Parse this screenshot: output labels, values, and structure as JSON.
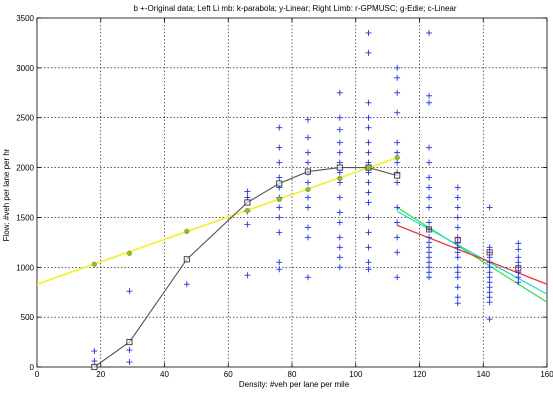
{
  "chart_data": {
    "type": "scatter",
    "title": "b +-Original data; Left  Li mb: k-parabola; y-Linear; Right Limb: r-GPMUSC; g-Edie;   c-Linear",
    "xlabel": "Density: #veh per lane per mile",
    "ylabel": "Flow: #veh per lane per hr",
    "xlim": [
      0,
      160
    ],
    "ylim": [
      0,
      3500
    ],
    "xticks": [
      0,
      20,
      40,
      60,
      80,
      100,
      120,
      140,
      160
    ],
    "yticks": [
      0,
      500,
      1000,
      1500,
      2000,
      2500,
      3000,
      3500
    ],
    "xtick_labels": [
      "0",
      "20",
      "40",
      "60",
      "80",
      "100",
      "120",
      "140",
      "160"
    ],
    "ytick_labels": [
      "0",
      "500",
      "1000",
      "1500",
      "2000",
      "2500",
      "3000",
      "3500"
    ],
    "grid": true,
    "colors": {
      "original": "#1f35e6",
      "parabola": "#555555",
      "linear_left": "#f5f03a",
      "gpmusc": "#e83a3a",
      "edie": "#3ee04a",
      "linear_right": "#2fd8d8"
    },
    "series": [
      {
        "key": "original",
        "style": "plus",
        "points": [
          [
            18,
            160
          ],
          [
            18,
            60
          ],
          [
            29,
            760
          ],
          [
            29,
            170
          ],
          [
            29,
            50
          ],
          [
            47,
            830
          ],
          [
            66,
            1760
          ],
          [
            66,
            1700
          ],
          [
            66,
            1560
          ],
          [
            66,
            1430
          ],
          [
            66,
            920
          ],
          [
            76,
            2400
          ],
          [
            76,
            2200
          ],
          [
            76,
            2050
          ],
          [
            76,
            1900
          ],
          [
            76,
            1800
          ],
          [
            76,
            1700
          ],
          [
            76,
            1600
          ],
          [
            76,
            1500
          ],
          [
            76,
            1350
          ],
          [
            76,
            1050
          ],
          [
            76,
            980
          ],
          [
            85,
            2480
          ],
          [
            85,
            2300
          ],
          [
            85,
            2150
          ],
          [
            85,
            2050
          ],
          [
            85,
            1950
          ],
          [
            85,
            1850
          ],
          [
            85,
            1700
          ],
          [
            85,
            1600
          ],
          [
            85,
            1400
          ],
          [
            85,
            1300
          ],
          [
            85,
            900
          ],
          [
            95,
            2750
          ],
          [
            95,
            2500
          ],
          [
            95,
            2380
          ],
          [
            95,
            2250
          ],
          [
            95,
            2150
          ],
          [
            95,
            2050
          ],
          [
            95,
            1950
          ],
          [
            95,
            1850
          ],
          [
            95,
            1700
          ],
          [
            95,
            1550
          ],
          [
            95,
            1450
          ],
          [
            95,
            1300
          ],
          [
            95,
            1200
          ],
          [
            95,
            1100
          ],
          [
            95,
            1000
          ],
          [
            104,
            3350
          ],
          [
            104,
            3150
          ],
          [
            104,
            2650
          ],
          [
            104,
            2500
          ],
          [
            104,
            2400
          ],
          [
            104,
            2250
          ],
          [
            104,
            2150
          ],
          [
            104,
            2050
          ],
          [
            104,
            1950
          ],
          [
            104,
            1850
          ],
          [
            104,
            1750
          ],
          [
            104,
            1650
          ],
          [
            104,
            1500
          ],
          [
            104,
            1350
          ],
          [
            104,
            1200
          ],
          [
            104,
            1050
          ],
          [
            104,
            980
          ],
          [
            113,
            3000
          ],
          [
            113,
            2900
          ],
          [
            113,
            2750
          ],
          [
            113,
            2550
          ],
          [
            113,
            2250
          ],
          [
            113,
            2150
          ],
          [
            113,
            2050
          ],
          [
            113,
            1950
          ],
          [
            113,
            1850
          ],
          [
            113,
            1600
          ],
          [
            113,
            1450
          ],
          [
            113,
            1300
          ],
          [
            113,
            1150
          ],
          [
            113,
            900
          ],
          [
            123,
            3350
          ],
          [
            123,
            2720
          ],
          [
            123,
            2650
          ],
          [
            123,
            2200
          ],
          [
            123,
            2050
          ],
          [
            123,
            1900
          ],
          [
            123,
            1800
          ],
          [
            123,
            1700
          ],
          [
            123,
            1600
          ],
          [
            123,
            1450
          ],
          [
            123,
            1380
          ],
          [
            123,
            1300
          ],
          [
            123,
            1250
          ],
          [
            123,
            1200
          ],
          [
            123,
            1150
          ],
          [
            123,
            1100
          ],
          [
            123,
            1050
          ],
          [
            123,
            1000
          ],
          [
            123,
            950
          ],
          [
            123,
            900
          ],
          [
            132,
            1800
          ],
          [
            132,
            1700
          ],
          [
            132,
            1600
          ],
          [
            132,
            1500
          ],
          [
            132,
            1400
          ],
          [
            132,
            1300
          ],
          [
            132,
            1250
          ],
          [
            132,
            1200
          ],
          [
            132,
            1150
          ],
          [
            132,
            1100
          ],
          [
            132,
            1000
          ],
          [
            132,
            950
          ],
          [
            132,
            900
          ],
          [
            132,
            800
          ],
          [
            132,
            700
          ],
          [
            132,
            640
          ],
          [
            142,
            1600
          ],
          [
            142,
            1200
          ],
          [
            142,
            1150
          ],
          [
            142,
            1100
          ],
          [
            142,
            1050
          ],
          [
            142,
            1000
          ],
          [
            142,
            950
          ],
          [
            142,
            900
          ],
          [
            142,
            850
          ],
          [
            142,
            800
          ],
          [
            142,
            750
          ],
          [
            142,
            700
          ],
          [
            142,
            650
          ],
          [
            142,
            480
          ],
          [
            151,
            1240
          ],
          [
            151,
            1180
          ],
          [
            151,
            1100
          ],
          [
            151,
            1050
          ],
          [
            151,
            1000
          ],
          [
            151,
            950
          ],
          [
            151,
            900
          ],
          [
            151,
            850
          ]
        ]
      },
      {
        "key": "parabola",
        "style": "line-square",
        "points": [
          [
            18,
            0
          ],
          [
            29,
            250
          ],
          [
            47,
            1080
          ],
          [
            66,
            1650
          ],
          [
            76,
            1840
          ],
          [
            85,
            1960
          ],
          [
            95,
            2000
          ],
          [
            104,
            2000
          ],
          [
            113,
            1920
          ]
        ]
      },
      {
        "key": "linear_left",
        "style": "line-circle",
        "line": [
          [
            0,
            830
          ],
          [
            113,
            2100
          ]
        ],
        "points": [
          [
            18,
            1030
          ],
          [
            29,
            1140
          ],
          [
            47,
            1360
          ],
          [
            66,
            1570
          ],
          [
            76,
            1680
          ],
          [
            85,
            1780
          ],
          [
            95,
            1890
          ],
          [
            104,
            2000
          ],
          [
            113,
            2100
          ]
        ]
      },
      {
        "key": "gpmusc",
        "style": "line-square",
        "line": [
          [
            113,
            1420
          ],
          [
            160,
            830
          ]
        ],
        "points": [
          [
            123,
            1380
          ],
          [
            132,
            1270
          ],
          [
            142,
            1150
          ],
          [
            151,
            990
          ]
        ]
      },
      {
        "key": "edie",
        "style": "line",
        "line": [
          [
            113,
            1600
          ],
          [
            160,
            650
          ]
        ]
      },
      {
        "key": "linear_right",
        "style": "line",
        "line": [
          [
            113,
            1560
          ],
          [
            160,
            730
          ]
        ]
      }
    ]
  }
}
